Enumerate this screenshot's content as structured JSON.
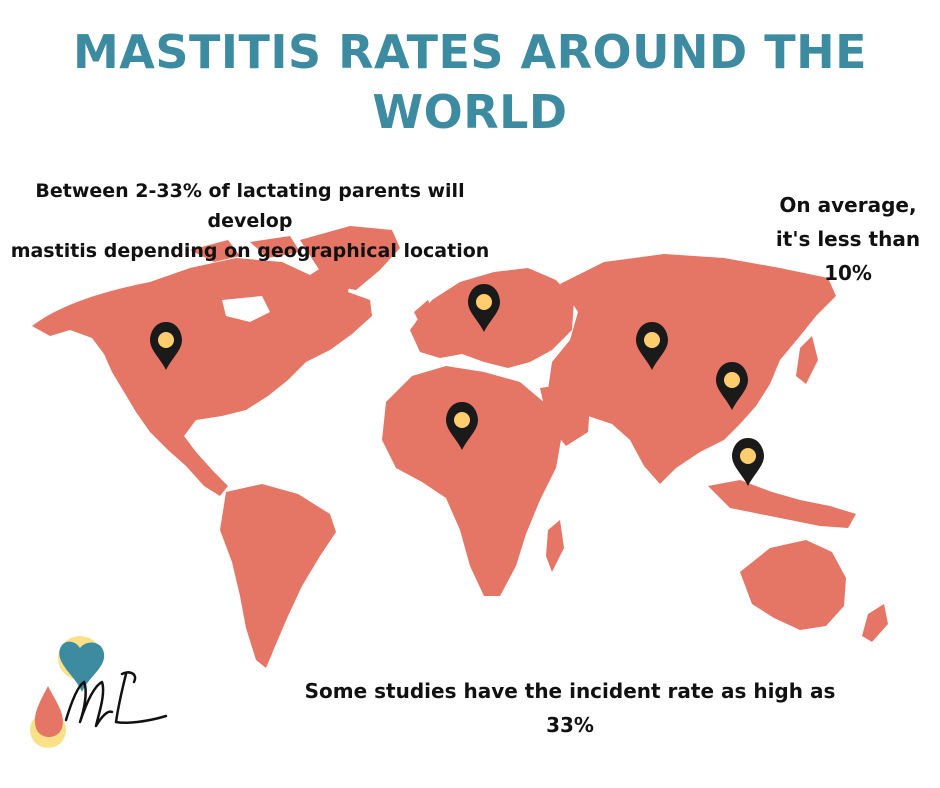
{
  "title": {
    "line1": "MASTITIS RATES AROUND THE",
    "line2": "WORLD"
  },
  "captions": {
    "left": {
      "line1": "Between 2-33% of lactating parents will develop",
      "line2": "mastitis depending on geographical location"
    },
    "right": {
      "line1": "On average,",
      "line2": "it's less than",
      "line3": "10%"
    },
    "bottom": {
      "line1": "Some studies have the incident rate as high as",
      "line2": "33%"
    }
  },
  "colors": {
    "title": "#3c8ba1",
    "land": "#e57565",
    "pin": "#1a1a1a",
    "pin_dot": "#ffcc6e",
    "logo_teal": "#3c8ba1",
    "logo_yellow": "#fbe08a"
  },
  "pins": [
    {
      "name": "north-america"
    },
    {
      "name": "europe"
    },
    {
      "name": "africa"
    },
    {
      "name": "central-asia"
    },
    {
      "name": "china"
    },
    {
      "name": "southeast-asia"
    }
  ]
}
